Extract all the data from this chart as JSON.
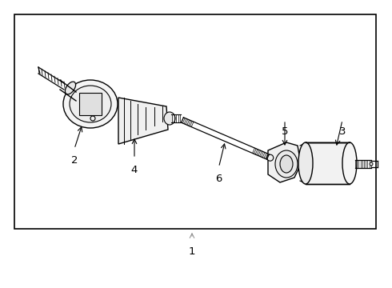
{
  "background_color": "#ffffff",
  "border_color": "#000000",
  "border_linewidth": 1.2,
  "lc": "#000000",
  "fc": "#ffffff",
  "label_fontsize": 10,
  "parts": [
    "1",
    "2",
    "3",
    "4",
    "5",
    "6"
  ]
}
